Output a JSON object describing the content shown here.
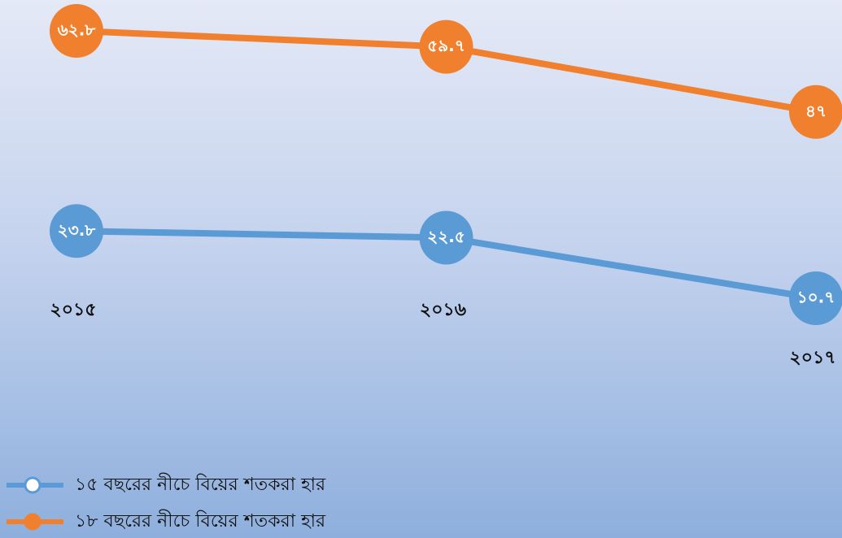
{
  "chart_data": {
    "type": "line",
    "categories": [
      "২০১৫",
      "২০১৬",
      "২০১৭"
    ],
    "series": [
      {
        "name": "১৫ বছরের নীচে বিয়ের শতকরা হার",
        "color": "#5b9bd5",
        "values": [
          23.8,
          22.5,
          10.7
        ],
        "value_labels": [
          "২৩.৮",
          "২২.৫",
          "১০.৭"
        ]
      },
      {
        "name": "১৮ বছরের নীচে বিয়ের শতকরা হার",
        "color": "#f07f2e",
        "values": [
          62.8,
          59.7,
          47
        ],
        "value_labels": [
          "৬২.৮",
          "৫৯.৭",
          "৪৭"
        ]
      }
    ]
  }
}
